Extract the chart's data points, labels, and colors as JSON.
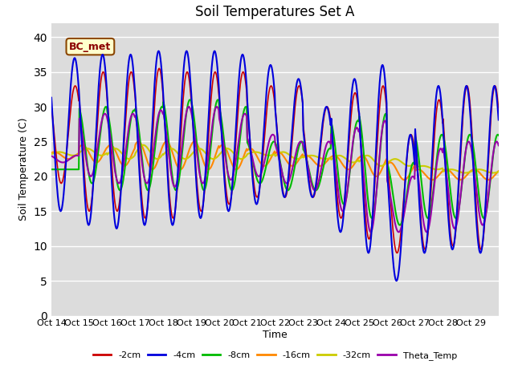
{
  "title": "Soil Temperatures Set A",
  "xlabel": "Time",
  "ylabel": "Soil Temperature (C)",
  "ylim": [
    0,
    42
  ],
  "yticks": [
    0,
    5,
    10,
    15,
    20,
    25,
    30,
    35,
    40
  ],
  "xtick_labels": [
    "Oct 14",
    "Oct 15",
    "Oct 16",
    "Oct 17",
    "Oct 18",
    "Oct 19",
    "Oct 20",
    "Oct 21",
    "Oct 22",
    "Oct 23",
    "Oct 24",
    "Oct 25",
    "Oct 26",
    "Oct 27",
    "Oct 28",
    "Oct 29"
  ],
  "legend_labels": [
    "-2cm",
    "-4cm",
    "-8cm",
    "-16cm",
    "-32cm",
    "Theta_Temp"
  ],
  "colors": [
    "#cc0000",
    "#0000dd",
    "#00bb00",
    "#ff8800",
    "#cccc00",
    "#9900aa"
  ],
  "linewidths": [
    1.2,
    1.5,
    1.5,
    1.5,
    1.5,
    1.5
  ],
  "annotation_text": "BC_met",
  "bg_color": "#dcdcdc",
  "fig_color": "#ffffff",
  "title_fontsize": 12,
  "label_fontsize": 9,
  "tick_fontsize": 8
}
